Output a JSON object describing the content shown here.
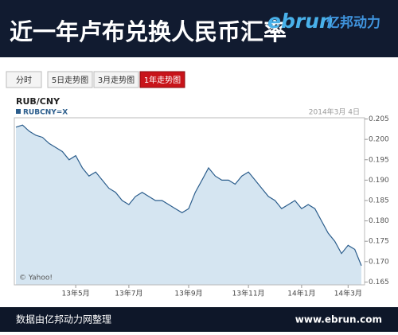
{
  "header": {
    "title": "近一年卢布兑换人民币汇率",
    "logo_brand": "ebrun",
    "logo_name": "亿邦动力"
  },
  "tabs": [
    "分时",
    "5日走势图",
    "3月走势图",
    "1年走势图"
  ],
  "chart_data": {
    "type": "area",
    "title": "RUB/CNY",
    "date": "2014年3月 4日",
    "source": "© Yahoo!",
    "categories": [
      null,
      null,
      null,
      null,
      null,
      null,
      null,
      null,
      null,
      "13年5月",
      null,
      null,
      null,
      null,
      null,
      null,
      null,
      "13年7月",
      null,
      null,
      null,
      null,
      null,
      null,
      null,
      null,
      "13年9月",
      null,
      null,
      null,
      null,
      null,
      null,
      null,
      null,
      "13年11月",
      null,
      null,
      null,
      null,
      null,
      null,
      null,
      "14年1月",
      null,
      null,
      null,
      null,
      null,
      null,
      "14年3月",
      null,
      null
    ],
    "series": [
      {
        "name": "RUBCNY=X",
        "color": "#2b5d8c",
        "fill": "#d5e5f1",
        "values": [
          0.203,
          0.2035,
          0.202,
          0.201,
          0.2005,
          0.199,
          0.198,
          0.197,
          0.195,
          0.196,
          0.193,
          0.191,
          0.192,
          0.19,
          0.188,
          0.187,
          0.185,
          0.184,
          0.186,
          0.187,
          0.186,
          0.185,
          0.185,
          0.184,
          0.183,
          0.182,
          0.183,
          0.187,
          0.19,
          0.193,
          0.191,
          0.19,
          0.19,
          0.189,
          0.191,
          0.192,
          0.19,
          0.188,
          0.186,
          0.185,
          0.183,
          0.184,
          0.185,
          0.183,
          0.184,
          0.183,
          0.18,
          0.177,
          0.175,
          0.172,
          0.174,
          0.173,
          0.169
        ]
      }
    ],
    "ylim": [
      0.1643,
      0.2053
    ],
    "yticks": [
      {
        "value": 0.165,
        "label": "0.165"
      },
      {
        "value": 0.17,
        "label": "0.170"
      },
      {
        "value": 0.175,
        "label": "0.175"
      },
      {
        "value": 0.18,
        "label": "0.180"
      },
      {
        "value": 0.185,
        "label": "0.185"
      },
      {
        "value": 0.19,
        "label": "0.190"
      },
      {
        "value": 0.195,
        "label": "0.195"
      },
      {
        "value": 0.2,
        "label": "0.200"
      },
      {
        "value": 0.205,
        "label": "0.205"
      }
    ],
    "grid": false
  },
  "footer": {
    "left": "数据由亿邦动力网整理",
    "right": "www.ebrun.com"
  }
}
